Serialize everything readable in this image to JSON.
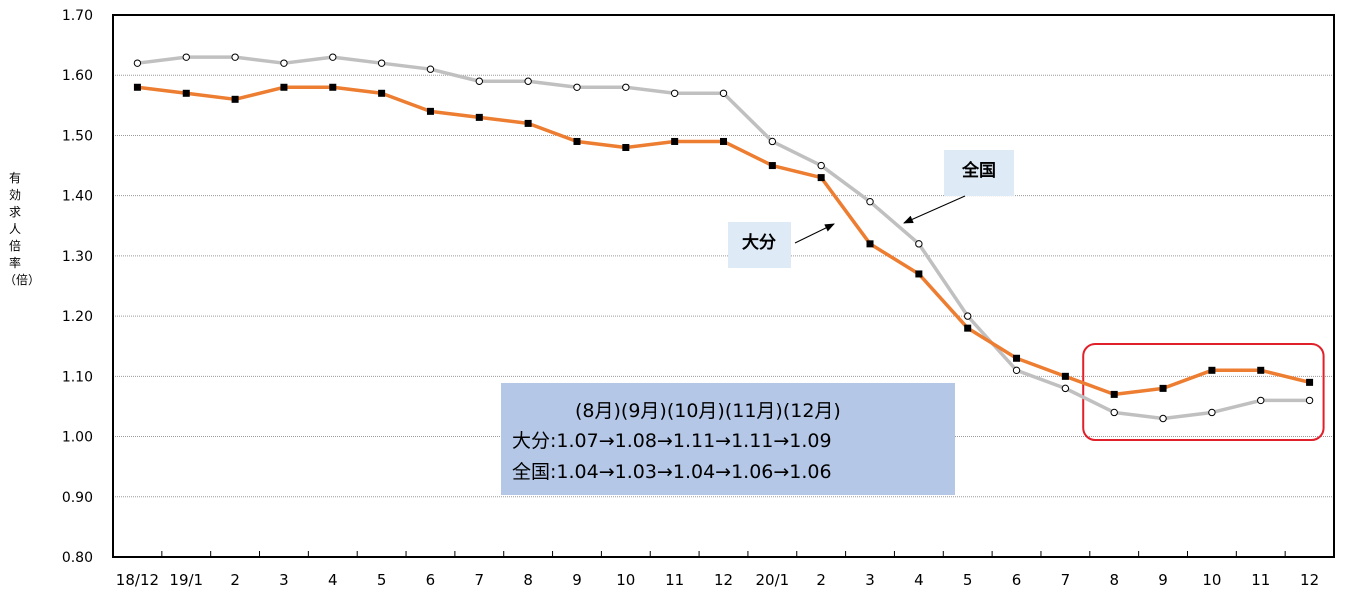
{
  "chart_data": {
    "type": "line",
    "categories": [
      "18/12",
      "19/1",
      "2",
      "3",
      "4",
      "5",
      "6",
      "7",
      "8",
      "9",
      "10",
      "11",
      "12",
      "20/1",
      "2",
      "3",
      "4",
      "5",
      "6",
      "7",
      "8",
      "9",
      "10",
      "11",
      "12"
    ],
    "ylim": [
      0.8,
      1.7
    ],
    "yticks": [
      "0.80",
      "0.90",
      "1.00",
      "1.10",
      "1.20",
      "1.30",
      "1.40",
      "1.50",
      "1.60",
      "1.70"
    ],
    "ylabel": "有効求人倍率（倍）",
    "xlabel": "",
    "grid": true,
    "series": [
      {
        "name": "全国",
        "color": "#c0c0c0",
        "marker": "circle",
        "values": [
          1.62,
          1.63,
          1.63,
          1.62,
          1.63,
          1.62,
          1.61,
          1.59,
          1.59,
          1.58,
          1.58,
          1.57,
          1.57,
          1.49,
          1.45,
          1.39,
          1.32,
          1.2,
          1.11,
          1.08,
          1.04,
          1.03,
          1.04,
          1.06,
          1.06
        ]
      },
      {
        "name": "大分",
        "color": "#ed7d31",
        "marker": "square",
        "values": [
          1.58,
          1.57,
          1.56,
          1.58,
          1.58,
          1.57,
          1.54,
          1.53,
          1.52,
          1.49,
          1.48,
          1.49,
          1.49,
          1.45,
          1.43,
          1.32,
          1.27,
          1.18,
          1.13,
          1.1,
          1.07,
          1.08,
          1.11,
          1.11,
          1.09
        ]
      }
    ],
    "annotations": {
      "label_zenkoku": "全国",
      "label_oita": "大分",
      "info_header": "(8月)(9月)(10月)(11月)(12月)",
      "info_oita": "大分:1.07→1.08→1.11→1.11→1.09",
      "info_zenkoku": "全国:1.04→1.03→1.04→1.06→1.06"
    },
    "colors": {
      "label_box_bg": "#deebf7",
      "info_box_bg": "#b4c7e7",
      "highlight_border": "#e0202a"
    }
  }
}
